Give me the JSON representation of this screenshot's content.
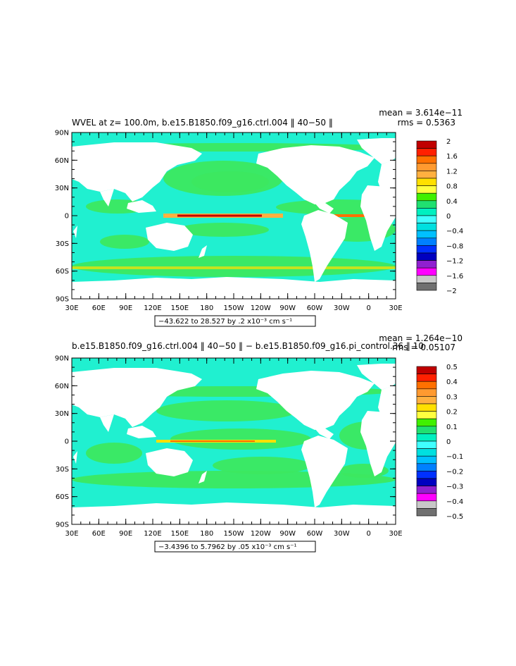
{
  "panels": [
    {
      "title": "WVEL at z= 100.0m, b.e15.B1850.f09_g16.ctrl.004  ‖ 40−50 ‖",
      "mean": "mean = 3.614e−11",
      "rms": "rms = 0.5363",
      "range_label": "−43.622 to 28.527 by .2 x10⁻³ cm s⁻¹",
      "lat_labels": [
        "90N",
        "60N",
        "30N",
        "0",
        "30S",
        "60S",
        "90S"
      ],
      "lon_labels": [
        "30E",
        "60E",
        "90E",
        "120E",
        "150E",
        "180",
        "150W",
        "120W",
        "90W",
        "60W",
        "30W",
        "0",
        "30E"
      ],
      "colorbar_labels": [
        "2",
        "1.6",
        "1.2",
        "0.8",
        "0.4",
        "0",
        "−0.4",
        "−0.8",
        "−1.2",
        "−1.6",
        "−2"
      ]
    },
    {
      "title": "b.e15.B1850.f09_g16.ctrl.004  ‖ 40−50 ‖  −  b.e15.B1850.f09_g16.pi_control.36  ‖ 10·",
      "mean": "mean = 1.264e−10",
      "rms": "rms = 0.05107",
      "range_label": "−3.4396 to 5.7962 by .05 x10⁻³ cm s⁻¹",
      "lat_labels": [
        "90N",
        "60N",
        "30N",
        "0",
        "30S",
        "60S",
        "90S"
      ],
      "lon_labels": [
        "30E",
        "60E",
        "90E",
        "120E",
        "150E",
        "180",
        "150W",
        "120W",
        "90W",
        "60W",
        "30W",
        "0",
        "30E"
      ],
      "colorbar_labels": [
        "0.5",
        "0.4",
        "0.3",
        "0.2",
        "0.1",
        "0",
        "−0.1",
        "−0.2",
        "−0.3",
        "−0.4",
        "−0.5"
      ]
    }
  ],
  "colors": {
    "palette_top_to_bottom": [
      "#c00000",
      "#ff2000",
      "#ff7000",
      "#ff9a30",
      "#ffb040",
      "#ffe000",
      "#ffff40",
      "#40f000",
      "#20e070",
      "#00f0c0",
      "#40ffff",
      "#00e0e0",
      "#00c0ff",
      "#0080ff",
      "#0030ff",
      "#0000c0",
      "#9020d0",
      "#ff00ff",
      "#c8c8c8",
      "#707070"
    ],
    "ocean_main": "#20f0d0",
    "ocean_green": "#3ce860",
    "land": "#ffffff"
  }
}
